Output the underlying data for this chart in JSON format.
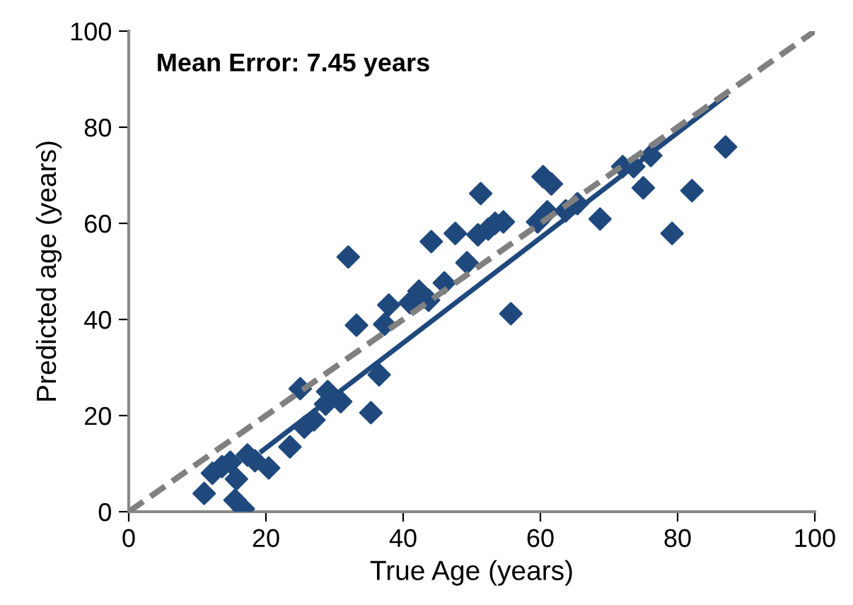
{
  "chart_data": {
    "type": "scatter",
    "xlabel": "True Age (years)",
    "ylabel": "Predicted age (years)",
    "annotations": [
      "Mean Error: 7.45 years"
    ],
    "xlim": [
      0,
      100
    ],
    "ylim": [
      0,
      100
    ],
    "xticks": [
      0,
      20,
      40,
      60,
      80,
      100
    ],
    "yticks": [
      0,
      20,
      40,
      60,
      80,
      100
    ],
    "grid": false,
    "legend": false,
    "series": [
      {
        "color": "#1f497d",
        "marker": "diamond",
        "x": [
          11,
          12.2,
          13.6,
          14.8,
          15.7,
          15.5,
          16.7,
          17.3,
          18.4,
          20.4,
          23.5,
          25,
          25.6,
          27,
          28.7,
          29,
          30.9,
          32,
          33.2,
          35.3,
          36.5,
          37.3,
          37.9,
          41,
          42.3,
          43.7,
          44.1,
          46,
          47.6,
          49.3,
          50.9,
          51.3,
          52.4,
          53.4,
          54.6,
          55.7,
          59.6,
          60.4,
          61.6,
          61,
          63.7,
          65.4,
          68.7,
          72,
          73.6,
          75,
          76.1,
          79.2,
          82.1,
          87
        ],
        "values": [
          3.8,
          8,
          9.4,
          10.3,
          6.8,
          2.4,
          0.6,
          11.8,
          10.6,
          9.1,
          13.5,
          25.6,
          17.6,
          19.1,
          22.4,
          25,
          22.9,
          53,
          38.8,
          20.6,
          28.5,
          39,
          43,
          43.5,
          45.9,
          44,
          56.2,
          47.6,
          57.9,
          51.8,
          57.6,
          66.2,
          58.8,
          60,
          60.3,
          41.2,
          60.3,
          69.7,
          68.2,
          62.4,
          62.6,
          64.1,
          60.9,
          71.8,
          71.8,
          67.4,
          74.1,
          57.9,
          66.8,
          75.9
        ]
      },
      {
        "type": "line",
        "color": "#1f497d",
        "line_style": "solid",
        "marker": "none",
        "x": [
          19.4,
          87
        ],
        "values": [
          12.6,
          86.5
        ]
      },
      {
        "type": "line",
        "color": "#808080",
        "line_style": "dashed",
        "marker": "none",
        "x": [
          0,
          100
        ],
        "values": [
          0,
          100
        ]
      }
    ]
  }
}
